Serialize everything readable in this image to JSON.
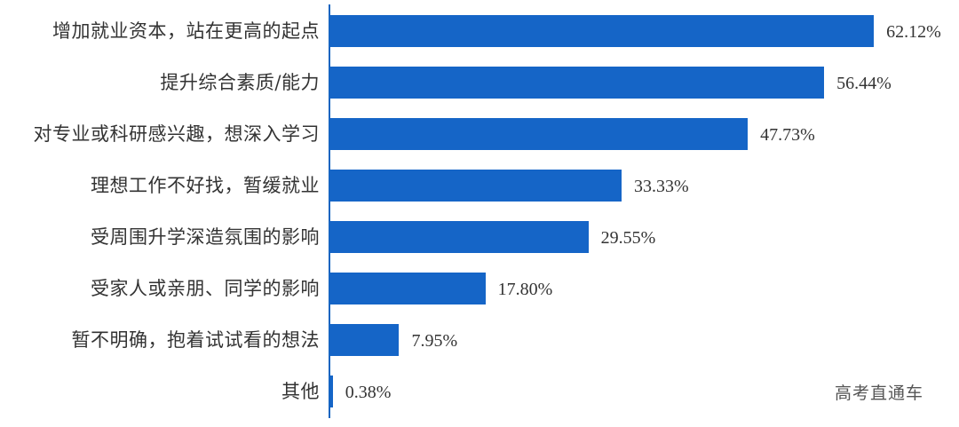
{
  "chart_data": {
    "type": "bar",
    "orientation": "horizontal",
    "title": "",
    "xlabel": "",
    "ylabel": "",
    "categories": [
      "增加就业资本，站在更高的起点",
      "提升综合素质/能力",
      "对专业或科研感兴趣，想深入学习",
      "理想工作不好找，暂缓就业",
      "受周围升学深造氛围的影响",
      "受家人或亲朋、同学的影响",
      "暂不明确，抱着试试看的想法",
      "其他"
    ],
    "values": [
      62.12,
      56.44,
      47.73,
      33.33,
      29.55,
      17.8,
      7.95,
      0.38
    ],
    "value_labels": [
      "62.12%",
      "56.44%",
      "47.73%",
      "33.33%",
      "29.55%",
      "17.80%",
      "7.95%",
      "0.38%"
    ],
    "unit": "%",
    "xlim": [
      0,
      70
    ],
    "grid": false,
    "legend": null,
    "bar_color": "#1565c7"
  },
  "watermark": "高考直通车"
}
